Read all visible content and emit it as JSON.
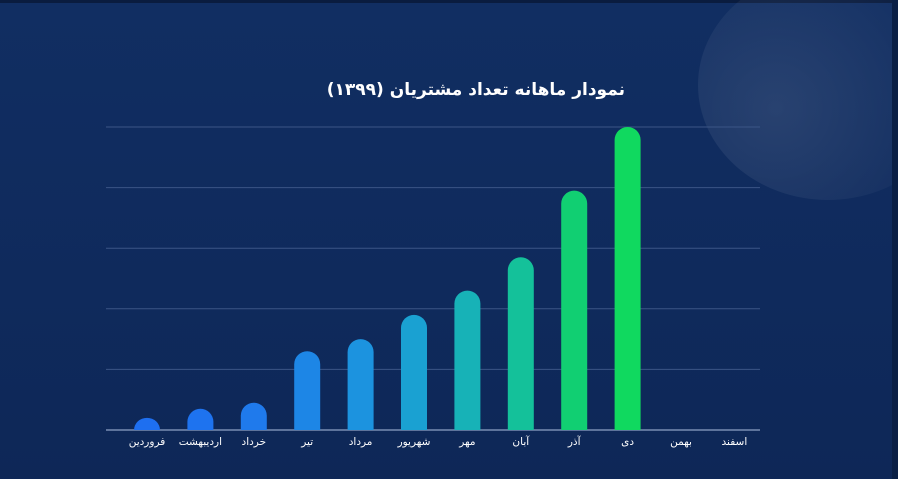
{
  "chart_data": {
    "type": "bar",
    "title": "نمودار ماهانه تعداد مشتریان (۱۳۹۹)",
    "categories": [
      "فروردین",
      "اردیبهشت",
      "خرداد",
      "تیر",
      "مرداد",
      "شهریور",
      "مهر",
      "آبان",
      "آذر",
      "دی",
      "بهمن",
      "اسفند"
    ],
    "values": [
      4,
      7,
      9,
      26,
      30,
      38,
      46,
      57,
      79,
      100,
      null,
      null
    ],
    "ylim": [
      0,
      100
    ],
    "grid": true,
    "colors": [
      "#1e6ff0",
      "#1e73ef",
      "#1f7aec",
      "#1d86e6",
      "#1c93df",
      "#1aa1d2",
      "#17b2b7",
      "#14c19a",
      "#11cf72",
      "#10d95f"
    ]
  }
}
